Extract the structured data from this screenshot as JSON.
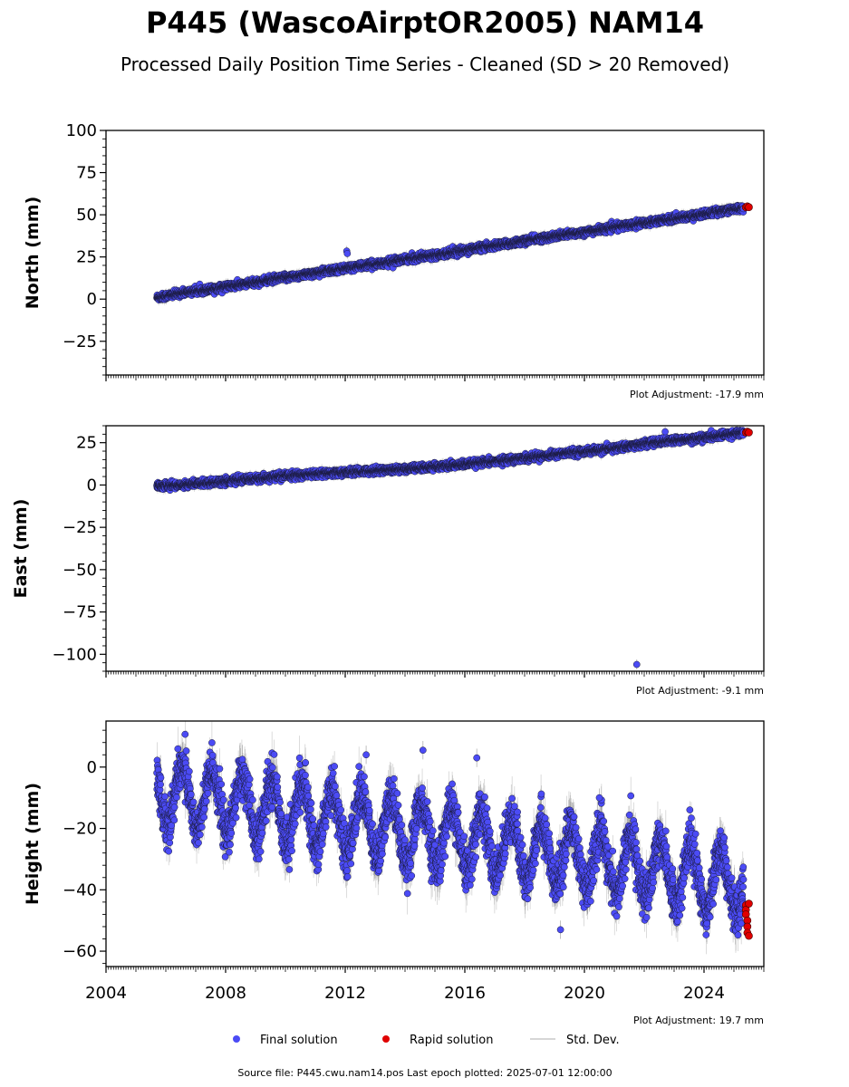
{
  "figure": {
    "title": "P445 (WascoAirptOR2005) NAM14",
    "subtitle": "Processed Daily Position Time Series - Cleaned (SD > 20 Removed)",
    "footer": "Source file: P445.cwu.nam14.pos  Last epoch plotted: 2025-07-01 12:00:00"
  },
  "legend": {
    "final_label": "Final solution",
    "rapid_label": "Rapid solution",
    "std_label": "Std. Dev."
  },
  "colors": {
    "final": "#4b4bf5",
    "rapid": "#e00000",
    "std": "#b0b0b0",
    "edge": "#1a1a3a"
  },
  "chart_data": [
    {
      "type": "scatter",
      "ylabel": "North (mm)",
      "adjustment": "Plot Adjustment: -17.9 mm",
      "xlim": [
        2004,
        2026
      ],
      "ylim": [
        -45,
        100
      ],
      "yticks": [
        -25,
        0,
        25,
        50,
        75,
        100
      ],
      "ytick_labels": [
        "−25",
        "0",
        "25",
        "50",
        "75",
        "100"
      ],
      "series": [
        {
          "name": "Final solution",
          "x": [
            2005.75,
            2006.5,
            2007.5,
            2008.5,
            2009.5,
            2010.5,
            2011.5,
            2012.5,
            2013.5,
            2014.5,
            2015.5,
            2016.5,
            2017.5,
            2018.5,
            2019.5,
            2020.5,
            2021.5,
            2022.5,
            2023.5,
            2024.5,
            2025.3
          ],
          "y": [
            1,
            3.5,
            6,
            8.5,
            11.5,
            14,
            17,
            19.5,
            22,
            25,
            27.5,
            30.5,
            33,
            36,
            38.5,
            41,
            44,
            46.5,
            49,
            52,
            54
          ]
        },
        {
          "name": "Rapid solution",
          "x": [
            2025.4,
            2025.45,
            2025.5
          ],
          "y": [
            54.5,
            55,
            54.5
          ]
        }
      ],
      "outliers": [
        {
          "x": 2012.05,
          "y": 28.5
        },
        {
          "x": 2012.07,
          "y": 27
        }
      ]
    },
    {
      "type": "scatter",
      "ylabel": "East (mm)",
      "adjustment": "Plot Adjustment: -9.1 mm",
      "xlim": [
        2004,
        2026
      ],
      "ylim": [
        -110,
        35
      ],
      "yticks": [
        -100,
        -75,
        -50,
        -25,
        0,
        25
      ],
      "ytick_labels": [
        "−100",
        "−75",
        "−50",
        "−25",
        "0",
        "25"
      ],
      "series": [
        {
          "name": "Final solution",
          "x": [
            2005.75,
            2006.5,
            2007.5,
            2008.5,
            2009.5,
            2010.5,
            2011.5,
            2012.5,
            2013.5,
            2014.5,
            2015.5,
            2016.5,
            2017.5,
            2018.5,
            2019.5,
            2020.5,
            2021.5,
            2022.5,
            2023.5,
            2024.5,
            2025.3
          ],
          "y": [
            -0.5,
            0,
            1.5,
            3,
            4.5,
            6,
            7,
            8,
            9,
            10,
            11.5,
            13,
            15,
            17,
            19,
            20.5,
            23,
            25.5,
            27,
            29,
            31
          ]
        },
        {
          "name": "Rapid solution",
          "x": [
            2025.4,
            2025.45,
            2025.5
          ],
          "y": [
            31,
            31.5,
            31
          ]
        }
      ],
      "outliers": [
        {
          "x": 2021.75,
          "y": -106
        },
        {
          "x": 2022.7,
          "y": 31.5
        }
      ]
    },
    {
      "type": "scatter",
      "ylabel": "Height (mm)",
      "adjustment": "Plot Adjustment: 19.7 mm",
      "xlim": [
        2004,
        2026
      ],
      "ylim": [
        -65,
        15
      ],
      "yticks": [
        -60,
        -40,
        -20,
        0
      ],
      "ytick_labels": [
        "−60",
        "−40",
        "−20",
        "0"
      ],
      "xticks": [
        2004,
        2008,
        2012,
        2016,
        2020,
        2024
      ],
      "series": [
        {
          "name": "Final solution",
          "trend_start": -8,
          "trend_end": -38,
          "seasonal_amplitude": 10,
          "x_start": 2005.7,
          "x_end": 2025.3
        },
        {
          "name": "Rapid solution",
          "x": [
            2025.4,
            2025.4,
            2025.4,
            2025.45,
            2025.45,
            2025.45,
            2025.5,
            2025.5
          ],
          "y": [
            -45,
            -46.5,
            -48,
            -50,
            -52,
            -54,
            -55,
            -44.5
          ]
        }
      ],
      "outliers": [
        {
          "x": 2014.6,
          "y": 5.5
        },
        {
          "x": 2012.7,
          "y": 4
        },
        {
          "x": 2016.4,
          "y": 3
        },
        {
          "x": 2020.5,
          "y": -10
        },
        {
          "x": 2019.2,
          "y": -53
        }
      ]
    }
  ]
}
